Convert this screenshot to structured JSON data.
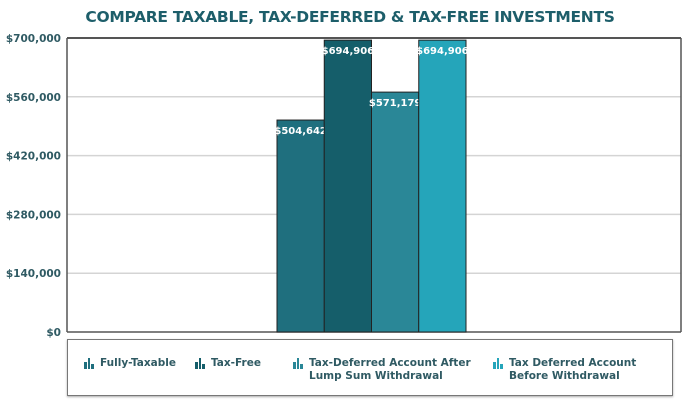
{
  "chart_data": {
    "type": "bar",
    "title": "COMPARE TAXABLE, TAX-DEFERRED & TAX-FREE INVESTMENTS",
    "xlabel": "",
    "ylabel": "",
    "ylim": [
      0,
      700000
    ],
    "y_ticks": [
      "$0",
      "$140,000",
      "$280,000",
      "$420,000",
      "$560,000",
      "$700,000"
    ],
    "y_tick_values": [
      0,
      140000,
      280000,
      420000,
      560000,
      700000
    ],
    "grid": true,
    "legend_position": "bottom",
    "series": [
      {
        "name": "Fully-Taxable",
        "value": 504642,
        "label": "$504,642",
        "color": "#1f6f7e"
      },
      {
        "name": "Tax-Free",
        "value": 694906,
        "label": "$694,906",
        "color": "#155e6a"
      },
      {
        "name": "Tax-Deferred Account After Lump Sum Withdrawal",
        "value": 571179,
        "label": "$571,179",
        "color": "#2a8797"
      },
      {
        "name": "Tax Deferred Account Before Withdrawal",
        "value": 694906,
        "label": "$694,906",
        "color": "#25a5ba"
      }
    ]
  }
}
